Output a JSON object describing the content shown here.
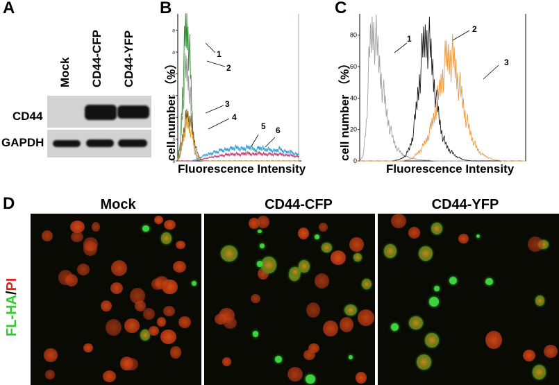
{
  "panels": {
    "a": "A",
    "b": "B",
    "c": "C",
    "d": "D"
  },
  "blot": {
    "lanes": [
      "Mock",
      "CD44-CFP",
      "CD44-YFP"
    ],
    "rows": [
      "CD44",
      "GAPDH"
    ]
  },
  "chart_b": {
    "ylabel_prefix": "cell number",
    "ylabel_unit": "（%）",
    "xlabel": "Fluorescence Intensity",
    "ticks": [
      "0",
      "10",
      "20",
      "30",
      "40",
      "50",
      "60"
    ],
    "curve_labels": [
      "1",
      "2",
      "3",
      "4",
      "5",
      "6"
    ]
  },
  "chart_c": {
    "ylabel_prefix": "cell number",
    "ylabel_unit": "（%）",
    "xlabel": "Fluorescence Intensity",
    "ticks": [
      "0",
      "20",
      "40",
      "60",
      "80"
    ],
    "curve_labels": [
      "1",
      "2",
      "3"
    ]
  },
  "microscopy": {
    "titles": [
      "Mock",
      "CD44-CFP",
      "CD44-YFP"
    ],
    "stain_green": "FL-HA",
    "stain_sep": "/",
    "stain_red": "PI"
  },
  "chart_data": [
    {
      "type": "line",
      "panel": "B",
      "ylim": [
        0,
        65
      ],
      "x": [
        0.0,
        0.02,
        0.04,
        0.06,
        0.08,
        0.1,
        0.12,
        0.14,
        0.16,
        0.18,
        0.2,
        0.22,
        0.24,
        0.26,
        0.28,
        0.3,
        0.32,
        0.34,
        0.36,
        0.38,
        0.4,
        0.42,
        0.44,
        0.46,
        0.48,
        0.5,
        0.52,
        0.54,
        0.56,
        0.58,
        0.6,
        0.62,
        0.64,
        0.66,
        0.68,
        0.7,
        0.72,
        0.74,
        0.76,
        0.78,
        0.8,
        0.82,
        0.84,
        0.86,
        0.88,
        0.9,
        0.92,
        0.94,
        0.96,
        0.98,
        1.0
      ],
      "series": [
        {
          "color": "#2e8b2e",
          "values": [
            1,
            7,
            32,
            56,
            62,
            47,
            20,
            5,
            1,
            0.3,
            0.1,
            0,
            0,
            0,
            0,
            0,
            0,
            0,
            0,
            0,
            0,
            0,
            0,
            0,
            0,
            0,
            0,
            0,
            0,
            0,
            0,
            0,
            0,
            0,
            0,
            0,
            0,
            0,
            0,
            0,
            0,
            0,
            0,
            0,
            0,
            0,
            0,
            0,
            0,
            0,
            0
          ]
        },
        {
          "color": "#9a9a9a",
          "values": [
            1,
            5,
            23,
            40,
            42,
            32,
            14,
            4,
            1,
            0.3,
            0.1,
            0,
            0,
            0,
            0,
            0,
            0,
            0,
            0,
            0,
            0,
            0,
            0,
            0,
            0,
            0,
            0,
            0,
            0,
            0,
            0,
            0,
            0,
            0,
            0,
            0,
            0,
            0,
            0,
            0,
            0,
            0,
            0,
            0,
            0,
            0,
            0,
            0,
            0,
            0,
            0
          ]
        },
        {
          "color": "#7a5a16",
          "values": [
            0.5,
            3,
            11,
            18,
            21,
            19,
            15,
            9,
            4,
            1.5,
            0.5,
            0.2,
            0,
            0,
            0,
            0,
            0,
            0,
            0,
            0,
            0,
            0,
            0,
            0,
            0,
            0,
            0,
            0,
            0,
            0,
            0,
            0,
            0,
            0,
            0,
            0,
            0,
            0,
            0,
            0,
            0,
            0,
            0,
            0,
            0,
            0,
            0,
            0,
            0,
            0,
            0
          ]
        },
        {
          "color": "#e8a030",
          "values": [
            0.3,
            2,
            8,
            14,
            17,
            15,
            11,
            6,
            2.5,
            1,
            0.3,
            0.1,
            0,
            0,
            0,
            0,
            0,
            0,
            0,
            0,
            0,
            0,
            0,
            0,
            0,
            0,
            0,
            0,
            0,
            0,
            0,
            0,
            0,
            0,
            0,
            0,
            0,
            0,
            0,
            0,
            0,
            0,
            0,
            0,
            0,
            0,
            0,
            0,
            0,
            0,
            0
          ]
        },
        {
          "color": "#2f9fd8",
          "values": [
            0,
            0,
            0,
            0,
            0,
            0,
            0,
            0.5,
            1,
            1.5,
            2,
            2.5,
            3,
            3,
            3.5,
            4,
            4,
            4.5,
            5,
            5,
            5,
            5.5,
            5.5,
            6,
            6,
            6,
            5.5,
            5.5,
            6,
            6,
            6.5,
            5.5,
            5,
            5.5,
            6,
            6,
            5,
            5.5,
            5,
            5,
            4.5,
            5,
            5.5,
            5,
            4.5,
            4,
            4.5,
            4,
            3.5,
            3,
            3
          ]
        },
        {
          "color": "#c0306a",
          "values": [
            0,
            0,
            0,
            0,
            0,
            0,
            0,
            0,
            0.3,
            0.5,
            0.8,
            1,
            1.3,
            1.5,
            1.8,
            2,
            2,
            2.2,
            2.5,
            2.5,
            2.8,
            3,
            3,
            3,
            3.2,
            3,
            3,
            3.2,
            3.5,
            3.5,
            3.3,
            3,
            3.2,
            3.5,
            3.5,
            3.2,
            3,
            3,
            3.2,
            3,
            3,
            3,
            3.2,
            3,
            2.8,
            2.5,
            2.8,
            2.5,
            2.3,
            2,
            2
          ]
        }
      ]
    },
    {
      "type": "line",
      "panel": "C",
      "ylim": [
        0,
        90
      ],
      "x": [
        0.0,
        0.02,
        0.04,
        0.06,
        0.08,
        0.1,
        0.12,
        0.14,
        0.16,
        0.18,
        0.2,
        0.22,
        0.24,
        0.26,
        0.28,
        0.3,
        0.32,
        0.34,
        0.36,
        0.38,
        0.4,
        0.42,
        0.44,
        0.46,
        0.48,
        0.5,
        0.52,
        0.54,
        0.56,
        0.58,
        0.6,
        0.62,
        0.64,
        0.66,
        0.68,
        0.7,
        0.72,
        0.74,
        0.76,
        0.78,
        0.8,
        0.82,
        0.84,
        0.86,
        0.88,
        0.9,
        0.92,
        0.94,
        0.96,
        0.98,
        1.0
      ],
      "series": [
        {
          "color": "#a0a0a0",
          "values": [
            0,
            3,
            25,
            70,
            86,
            75,
            60,
            45,
            32,
            22,
            14,
            9,
            6,
            4,
            3,
            2,
            1.5,
            1,
            1,
            0.5,
            0.5,
            0.3,
            0.2,
            0,
            0,
            0,
            0,
            0,
            0,
            0,
            0,
            0,
            0,
            0,
            0,
            0,
            0,
            0,
            0,
            0,
            0,
            0,
            0,
            0,
            0,
            0,
            0,
            0,
            0,
            0,
            0
          ]
        },
        {
          "color": "#1a1a1a",
          "values": [
            0,
            0,
            0,
            0,
            0,
            0,
            0,
            0,
            0,
            0,
            0,
            0.5,
            1,
            2,
            4,
            8,
            16,
            32,
            52,
            70,
            80,
            74,
            58,
            40,
            26,
            16,
            10,
            7,
            5,
            3,
            2,
            1,
            0.5,
            0.2,
            0,
            0,
            0,
            0,
            0,
            0,
            0,
            0,
            0,
            0,
            0,
            0,
            0,
            0,
            0,
            0,
            0
          ]
        },
        {
          "color": "#e89a40",
          "values": [
            0,
            0,
            0,
            0,
            0,
            0,
            0,
            0,
            0,
            0,
            0,
            0,
            0,
            0,
            0.5,
            1,
            2,
            4,
            6,
            9,
            13,
            18,
            25,
            34,
            44,
            55,
            64,
            67,
            65,
            58,
            48,
            38,
            28,
            20,
            14,
            9,
            6,
            4,
            3,
            2,
            1,
            0.5,
            0.3,
            0,
            0,
            0,
            0,
            0,
            0,
            0,
            0
          ]
        }
      ]
    }
  ]
}
